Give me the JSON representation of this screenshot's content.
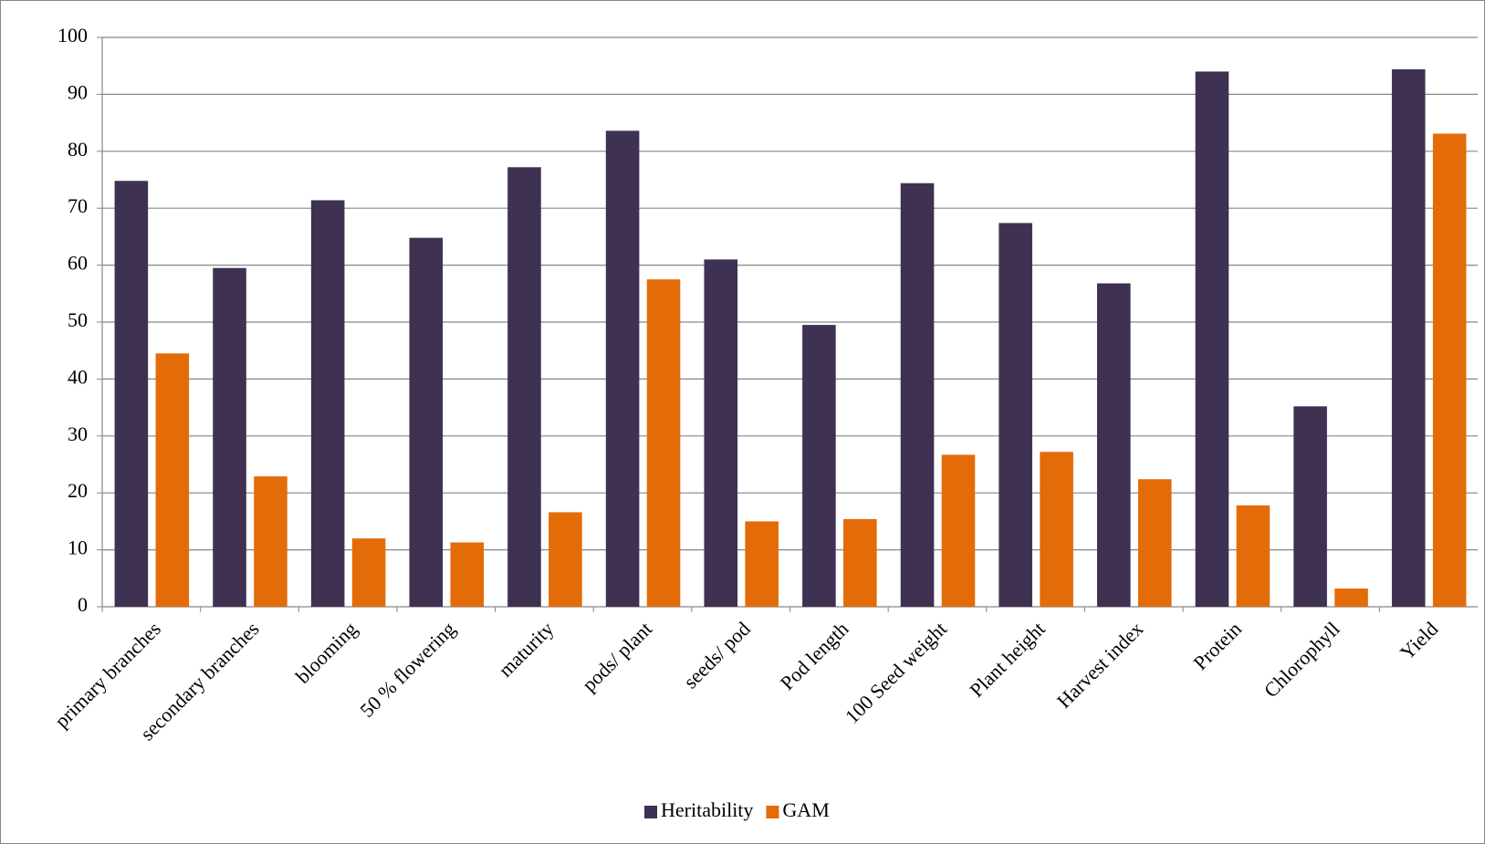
{
  "chart_data": {
    "type": "bar",
    "categories": [
      "primary branches",
      "secondary branches",
      "blooming",
      "50 % flowering",
      "maturity",
      "pods/ plant",
      "seeds/ pod",
      "Pod length",
      "100 Seed weight",
      "Plant height",
      "Harvest index",
      "Protein",
      "Chlorophyll",
      "Yield"
    ],
    "series": [
      {
        "name": "Heritability",
        "color": "#3f3151",
        "values": [
          74.8,
          59.5,
          71.4,
          64.8,
          77.2,
          83.6,
          61.0,
          49.5,
          74.4,
          67.4,
          56.8,
          94.0,
          35.2,
          94.4
        ]
      },
      {
        "name": "GAM",
        "color": "#e36c09",
        "values": [
          44.5,
          22.9,
          12.0,
          11.3,
          16.6,
          57.5,
          15.0,
          15.4,
          26.7,
          27.2,
          22.4,
          17.8,
          3.2,
          83.1
        ]
      }
    ],
    "ylim": [
      0,
      100
    ],
    "yticks": [
      0,
      10,
      20,
      30,
      40,
      50,
      60,
      70,
      80,
      90,
      100
    ],
    "grid": true,
    "legend": "bottom"
  }
}
